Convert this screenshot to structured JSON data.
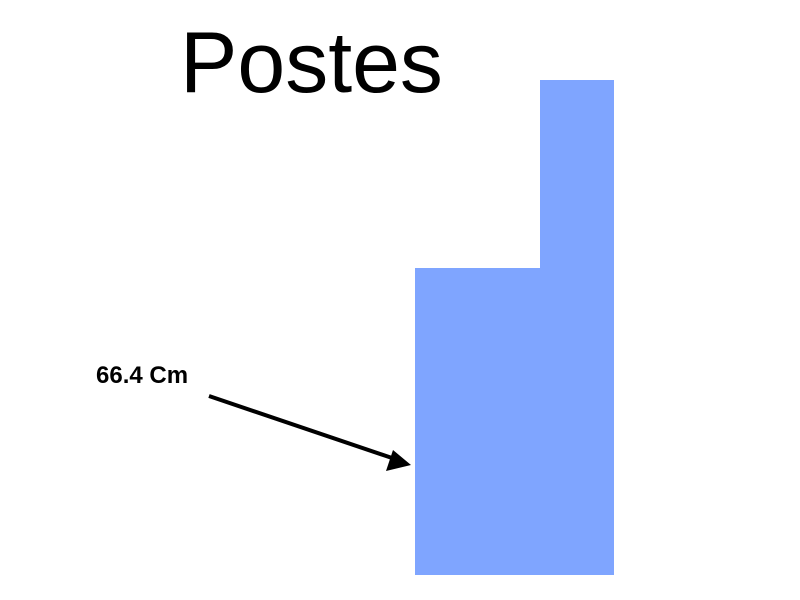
{
  "title": "Postes",
  "measurement": {
    "label": "66.4 Cm"
  },
  "colors": {
    "post_fill": "#7fa5ff",
    "arrow": "#000000",
    "text": "#000000",
    "background": "#ffffff"
  }
}
